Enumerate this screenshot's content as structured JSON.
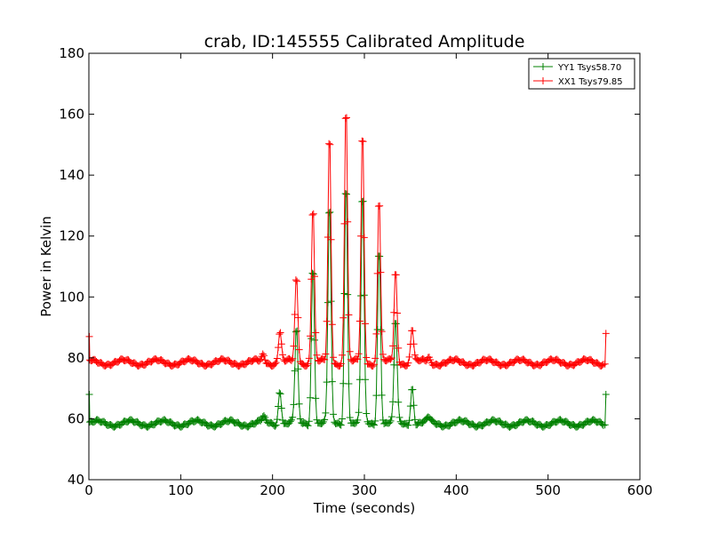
{
  "chart_data": {
    "type": "line",
    "title": "crab, ID:145555 Calibrated Amplitude",
    "xlabel": "Time (seconds)",
    "ylabel": "Power in Kelvin",
    "xlim": [
      0,
      600
    ],
    "ylim": [
      40,
      180
    ],
    "xticks": [
      0,
      100,
      200,
      300,
      400,
      500,
      600
    ],
    "yticks": [
      40,
      60,
      80,
      100,
      120,
      140,
      160,
      180
    ],
    "grid": false,
    "legend_position": "top-right",
    "series": [
      {
        "name": "YY1 Tsys58.70",
        "color": "#008000",
        "baseline": 58.5,
        "start_value": 68,
        "end_value": 68,
        "time_range": [
          1,
          563
        ],
        "peaks": [
          {
            "t": 190,
            "v": 60
          },
          {
            "t": 208,
            "v": 70
          },
          {
            "t": 226,
            "v": 90
          },
          {
            "t": 244,
            "v": 112
          },
          {
            "t": 262,
            "v": 132
          },
          {
            "t": 280,
            "v": 140
          },
          {
            "t": 298,
            "v": 136
          },
          {
            "t": 316,
            "v": 118
          },
          {
            "t": 334,
            "v": 93
          },
          {
            "t": 352,
            "v": 71
          },
          {
            "t": 370,
            "v": 60
          }
        ]
      },
      {
        "name": "XX1 Tsys79.85",
        "color": "#ff0000",
        "baseline": 78.5,
        "start_value": 87,
        "end_value": 88,
        "time_range": [
          1,
          563
        ],
        "peaks": [
          {
            "t": 190,
            "v": 81
          },
          {
            "t": 208,
            "v": 89
          },
          {
            "t": 226,
            "v": 107
          },
          {
            "t": 244,
            "v": 131
          },
          {
            "t": 262,
            "v": 155
          },
          {
            "t": 280,
            "v": 165
          },
          {
            "t": 298,
            "v": 156
          },
          {
            "t": 316,
            "v": 134
          },
          {
            "t": 334,
            "v": 109
          },
          {
            "t": 352,
            "v": 90
          },
          {
            "t": 370,
            "v": 80
          }
        ]
      }
    ]
  }
}
